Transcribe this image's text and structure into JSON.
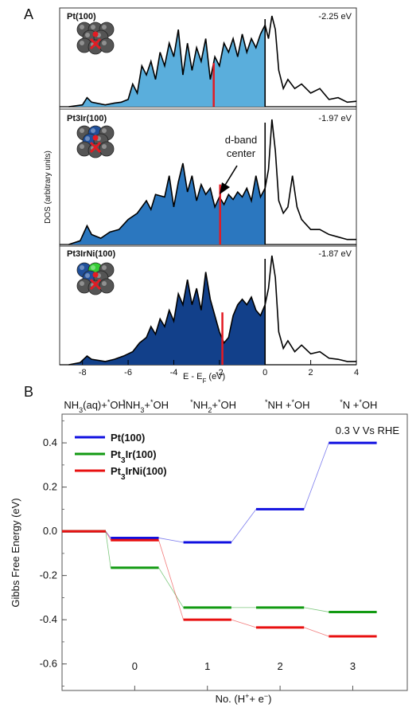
{
  "figure": {
    "panel_a_label": "A",
    "panel_b_label": "B",
    "colors": {
      "pt100_fill": "#5aaedc",
      "pt3ir_fill": "#2b77bf",
      "pt3irni_fill": "#12408a",
      "dband_line": "#e31b23",
      "curve": "#000000",
      "atom_pt": "#555555",
      "atom_ir": "#1f4f9a",
      "atom_ni": "#33cc33",
      "pathway_pt": "#1010e0",
      "pathway_ir": "#129a12",
      "pathway_irni": "#e81010"
    }
  },
  "chart_data": [
    {
      "type": "area",
      "panel": "A",
      "ylabel": "DOS (arbitrary units)",
      "xlabel": "E - E̅F (eV)",
      "xlabel_main": "E - E",
      "xlabel_sub": "F",
      "xlabel_unit": " (eV)",
      "xlim": [
        -9,
        4
      ],
      "x_ticks": [
        "-8",
        "-6",
        "-4",
        "-2",
        "0",
        "2",
        "4"
      ],
      "x_tick_values": [
        -8,
        -6,
        -4,
        -2,
        0,
        2,
        4
      ],
      "annotation": {
        "line1": "d-band",
        "line2": "center"
      },
      "subpanels": [
        {
          "name": "Pt(100)",
          "dband_center_label": "-2.25 eV",
          "dband_center": -2.25,
          "dos": [
            [
              -8.6,
              0
            ],
            [
              -8.0,
              0.02
            ],
            [
              -7.8,
              0.1
            ],
            [
              -7.6,
              0.05
            ],
            [
              -7.0,
              0.02
            ],
            [
              -6.6,
              0.04
            ],
            [
              -6.3,
              0.05
            ],
            [
              -6.0,
              0.08
            ],
            [
              -5.8,
              0.25
            ],
            [
              -5.6,
              0.15
            ],
            [
              -5.4,
              0.45
            ],
            [
              -5.2,
              0.35
            ],
            [
              -5.0,
              0.5
            ],
            [
              -4.8,
              0.3
            ],
            [
              -4.6,
              0.6
            ],
            [
              -4.4,
              0.45
            ],
            [
              -4.2,
              0.7
            ],
            [
              -4.0,
              0.55
            ],
            [
              -3.8,
              0.85
            ],
            [
              -3.6,
              0.35
            ],
            [
              -3.4,
              0.7
            ],
            [
              -3.2,
              0.4
            ],
            [
              -3.0,
              0.65
            ],
            [
              -2.8,
              0.5
            ],
            [
              -2.6,
              0.75
            ],
            [
              -2.4,
              0.3
            ],
            [
              -2.2,
              0.55
            ],
            [
              -2.0,
              0.45
            ],
            [
              -1.8,
              0.7
            ],
            [
              -1.6,
              0.6
            ],
            [
              -1.4,
              0.75
            ],
            [
              -1.2,
              0.55
            ],
            [
              -1.0,
              0.8
            ],
            [
              -0.8,
              0.6
            ],
            [
              -0.6,
              0.75
            ],
            [
              -0.4,
              0.65
            ],
            [
              -0.2,
              0.8
            ],
            [
              0.0,
              0.9
            ],
            [
              0.15,
              0.75
            ],
            [
              0.3,
              1.0
            ],
            [
              0.45,
              0.85
            ],
            [
              0.6,
              0.4
            ],
            [
              0.8,
              0.2
            ],
            [
              1.0,
              0.3
            ],
            [
              1.3,
              0.2
            ],
            [
              1.6,
              0.25
            ],
            [
              2.0,
              0.15
            ],
            [
              2.4,
              0.2
            ],
            [
              2.8,
              0.08
            ],
            [
              3.2,
              0.1
            ],
            [
              3.6,
              0.05
            ],
            [
              4.0,
              0.06
            ]
          ]
        },
        {
          "name": "Pt3Ir(100)",
          "dband_center_label": "-1.97 eV",
          "dband_center": -1.97,
          "dos": [
            [
              -8.6,
              0
            ],
            [
              -8.1,
              0.03
            ],
            [
              -7.8,
              0.15
            ],
            [
              -7.6,
              0.08
            ],
            [
              -7.2,
              0.05
            ],
            [
              -6.8,
              0.1
            ],
            [
              -6.4,
              0.12
            ],
            [
              -6.0,
              0.2
            ],
            [
              -5.6,
              0.25
            ],
            [
              -5.2,
              0.35
            ],
            [
              -5.0,
              0.28
            ],
            [
              -4.8,
              0.4
            ],
            [
              -4.4,
              0.38
            ],
            [
              -4.2,
              0.55
            ],
            [
              -4.0,
              0.3
            ],
            [
              -3.8,
              0.5
            ],
            [
              -3.6,
              0.65
            ],
            [
              -3.4,
              0.42
            ],
            [
              -3.2,
              0.55
            ],
            [
              -3.0,
              0.35
            ],
            [
              -2.8,
              0.48
            ],
            [
              -2.6,
              0.4
            ],
            [
              -2.4,
              0.45
            ],
            [
              -2.2,
              0.3
            ],
            [
              -2.0,
              0.38
            ],
            [
              -1.8,
              0.32
            ],
            [
              -1.6,
              0.4
            ],
            [
              -1.4,
              0.36
            ],
            [
              -1.2,
              0.42
            ],
            [
              -1.0,
              0.38
            ],
            [
              -0.8,
              0.45
            ],
            [
              -0.6,
              0.35
            ],
            [
              -0.4,
              0.55
            ],
            [
              -0.2,
              0.38
            ],
            [
              0.0,
              0.45
            ],
            [
              0.15,
              0.6
            ],
            [
              0.3,
              1.0
            ],
            [
              0.45,
              0.75
            ],
            [
              0.6,
              0.35
            ],
            [
              0.8,
              0.25
            ],
            [
              1.0,
              0.3
            ],
            [
              1.2,
              0.55
            ],
            [
              1.4,
              0.3
            ],
            [
              1.6,
              0.2
            ],
            [
              2.0,
              0.12
            ],
            [
              2.4,
              0.12
            ],
            [
              2.8,
              0.08
            ],
            [
              3.2,
              0.06
            ],
            [
              3.6,
              0.04
            ],
            [
              4.0,
              0.04
            ]
          ]
        },
        {
          "name": "Pt3IrNi(100)",
          "dband_center_label": "-1.87 eV",
          "dband_center": -1.87,
          "dos": [
            [
              -8.6,
              0
            ],
            [
              -8.1,
              0.02
            ],
            [
              -7.8,
              0.08
            ],
            [
              -7.6,
              0.05
            ],
            [
              -7.0,
              0.03
            ],
            [
              -6.6,
              0.05
            ],
            [
              -6.2,
              0.08
            ],
            [
              -5.8,
              0.12
            ],
            [
              -5.5,
              0.2
            ],
            [
              -5.2,
              0.25
            ],
            [
              -5.0,
              0.35
            ],
            [
              -4.8,
              0.28
            ],
            [
              -4.6,
              0.42
            ],
            [
              -4.4,
              0.35
            ],
            [
              -4.2,
              0.5
            ],
            [
              -4.0,
              0.4
            ],
            [
              -3.8,
              0.65
            ],
            [
              -3.6,
              0.55
            ],
            [
              -3.4,
              0.78
            ],
            [
              -3.2,
              0.55
            ],
            [
              -3.0,
              0.7
            ],
            [
              -2.8,
              0.5
            ],
            [
              -2.6,
              0.85
            ],
            [
              -2.4,
              0.6
            ],
            [
              -2.2,
              0.45
            ],
            [
              -2.0,
              0.3
            ],
            [
              -1.8,
              0.2
            ],
            [
              -1.6,
              0.25
            ],
            [
              -1.4,
              0.45
            ],
            [
              -1.2,
              0.55
            ],
            [
              -1.0,
              0.6
            ],
            [
              -0.8,
              0.55
            ],
            [
              -0.6,
              0.62
            ],
            [
              -0.4,
              0.5
            ],
            [
              -0.2,
              0.45
            ],
            [
              0.0,
              0.55
            ],
            [
              0.15,
              0.7
            ],
            [
              0.3,
              1.0
            ],
            [
              0.45,
              0.8
            ],
            [
              0.6,
              0.3
            ],
            [
              0.8,
              0.15
            ],
            [
              1.0,
              0.22
            ],
            [
              1.3,
              0.12
            ],
            [
              1.6,
              0.18
            ],
            [
              2.0,
              0.1
            ],
            [
              2.4,
              0.12
            ],
            [
              2.8,
              0.06
            ],
            [
              3.2,
              0.05
            ],
            [
              3.6,
              0.03
            ],
            [
              4.0,
              0.03
            ]
          ]
        }
      ]
    },
    {
      "type": "line",
      "panel": "B",
      "ylabel": "Gibbs Free Energy (eV)",
      "xlabel": "No. (H⁺+ e⁻)",
      "xlabel_parts": [
        "No. (H",
        "+",
        "+ e",
        "−",
        ")"
      ],
      "xlim": [
        -1,
        3.75
      ],
      "ylim": [
        -0.72,
        0.53
      ],
      "x_ticks": [
        "0",
        "1",
        "2",
        "3"
      ],
      "y_ticks": [
        "0.4",
        "0.2",
        "0.0",
        "-0.2",
        "-0.4",
        "-0.6"
      ],
      "y_tick_values": [
        0.4,
        0.2,
        0.0,
        -0.2,
        -0.4,
        -0.6
      ],
      "condition": "0.3 V Vs RHE",
      "step_labels": [
        {
          "base": "NH",
          "sub": "3",
          "rest": "(aq)+",
          "sup": "*",
          "tail": "OH"
        },
        {
          "pre": "*",
          "base": "NH",
          "sub": "3",
          "rest": "+",
          "sup": "*",
          "tail": "OH"
        },
        {
          "pre": "*",
          "base": "NH",
          "sub": "2",
          "rest": "+",
          "sup": "*",
          "tail": "OH"
        },
        {
          "pre": "*",
          "base": "NH ",
          "sub": "",
          "rest": "+",
          "sup": "*",
          "tail": "OH"
        },
        {
          "pre": "*",
          "base": "N ",
          "sub": "",
          "rest": "+",
          "sup": "*",
          "tail": "OH"
        }
      ],
      "legend_entries": [
        {
          "pre": "Pt(100)",
          "sub": "",
          "post": ""
        },
        {
          "pre": "Pt",
          "sub": "3",
          "post": "Ir(100)"
        },
        {
          "pre": "Pt",
          "sub": "3",
          "post": "IrNi(100)"
        }
      ],
      "series": [
        {
          "name": "Pt(100)",
          "steps": [
            -1,
            0,
            1,
            2,
            3
          ],
          "values": [
            0.0,
            -0.03,
            -0.05,
            0.1,
            0.4
          ]
        },
        {
          "name": "Pt3Ir(100)",
          "steps": [
            -1,
            0,
            1,
            2,
            3
          ],
          "values": [
            0.0,
            -0.165,
            -0.345,
            -0.345,
            -0.365
          ]
        },
        {
          "name": "Pt3IrNi(100)",
          "steps": [
            -1,
            0,
            1,
            2,
            3
          ],
          "values": [
            0.0,
            -0.04,
            -0.4,
            -0.435,
            -0.475
          ]
        }
      ]
    }
  ]
}
